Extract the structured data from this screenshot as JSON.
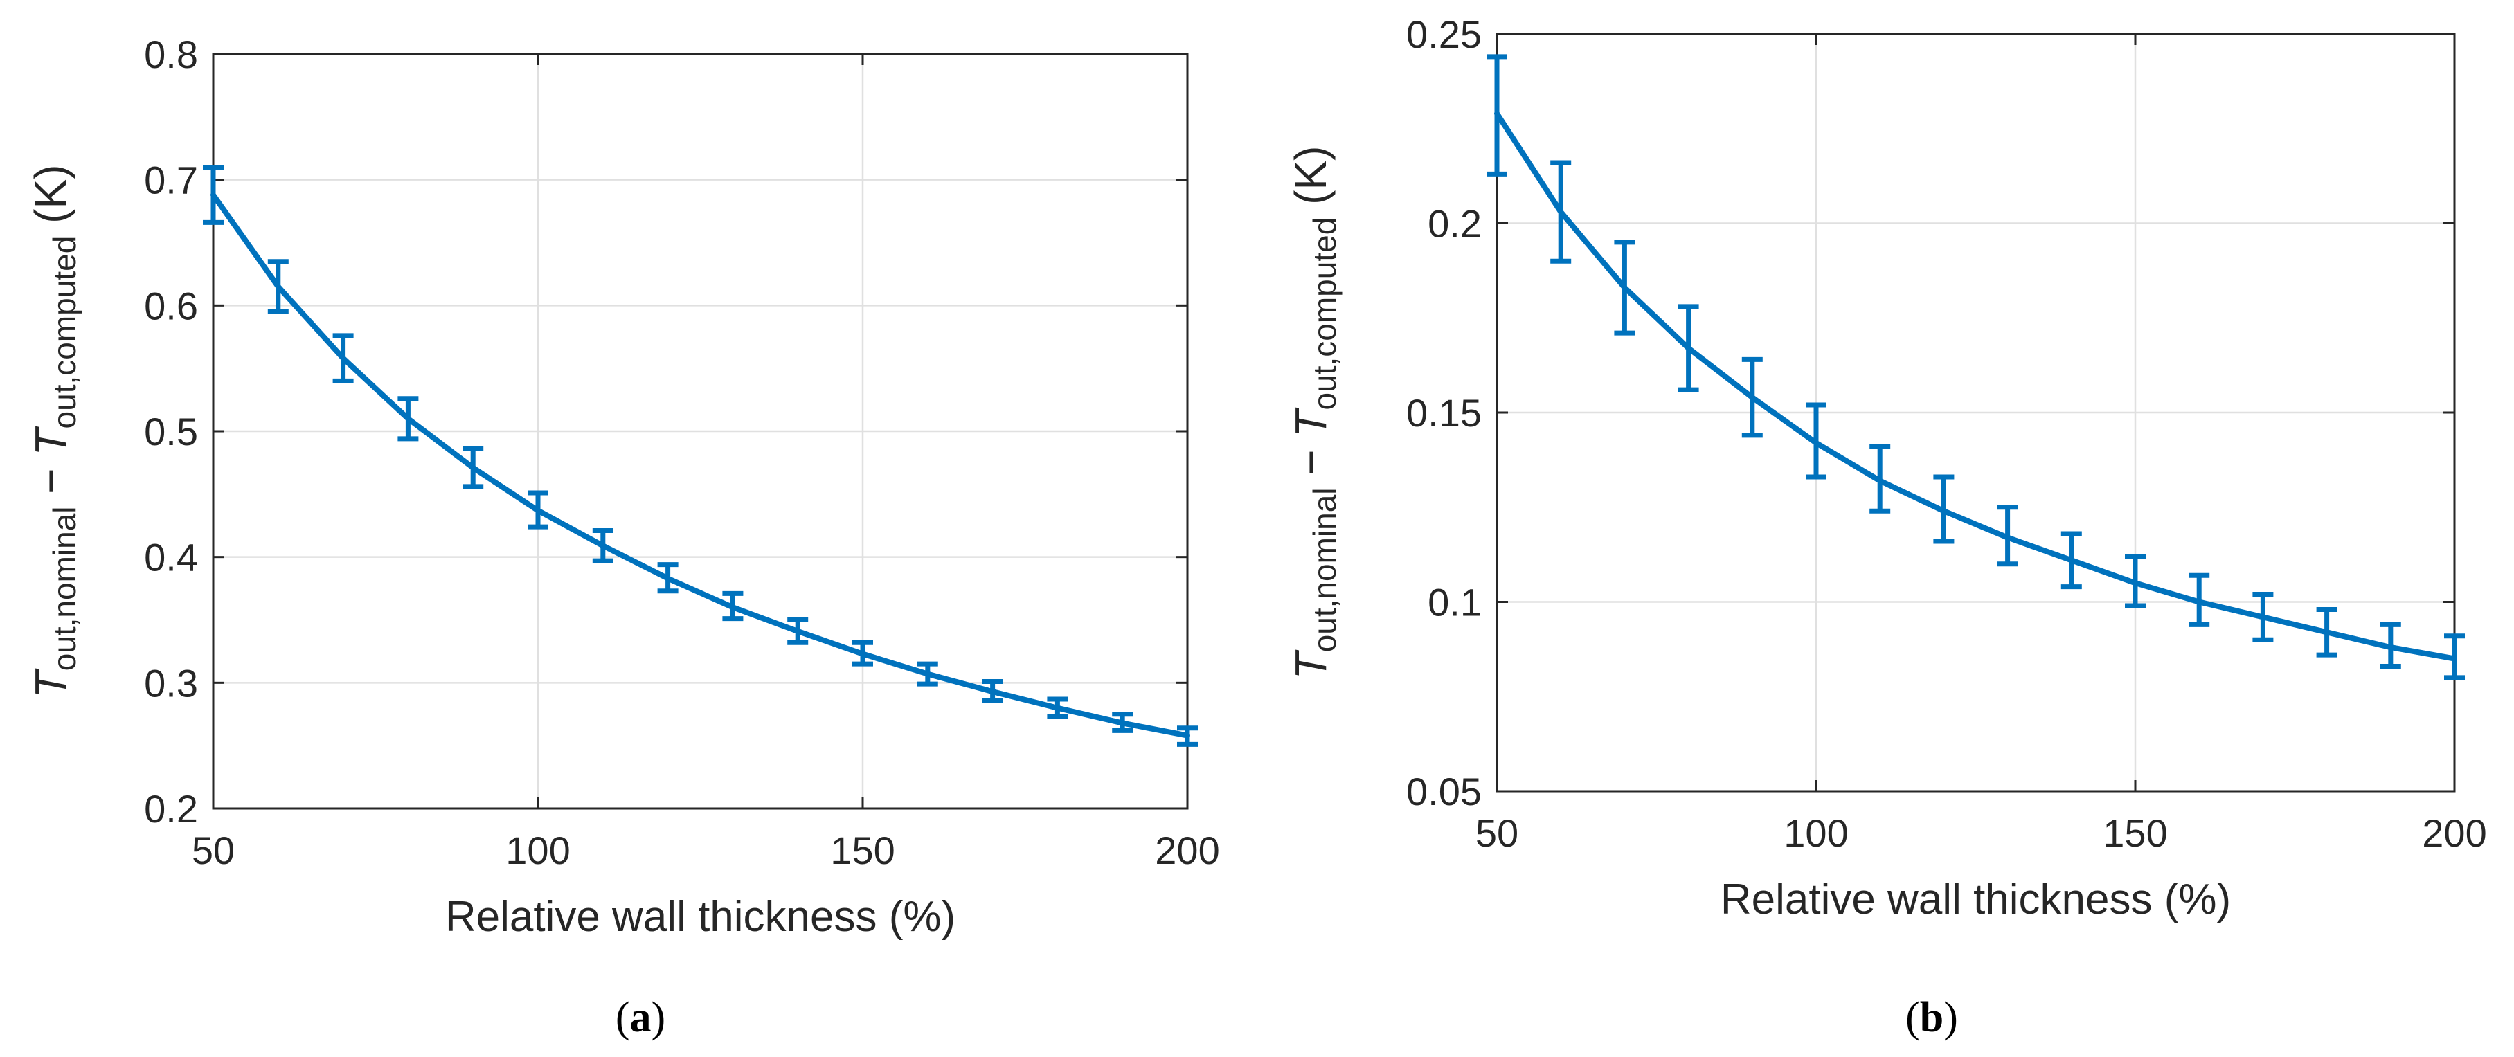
{
  "colors": {
    "series": "#0072BD",
    "axis": "#262626",
    "grid": "#e0e0e0"
  },
  "chart_data": [
    {
      "type": "line",
      "panel_label": "a",
      "xlabel": "Relative wall thickness (%)",
      "ylabel": {
        "T1": "T",
        "sub1": "out,nominal",
        "minus": " − ",
        "T2": "T",
        "sub2": "out,computed",
        "unit": " (K)"
      },
      "xlim": [
        50,
        200
      ],
      "ylim": [
        0.2,
        0.8
      ],
      "x_ticks": [
        50,
        100,
        150,
        200
      ],
      "x_tick_labels": [
        "50",
        "100",
        "150",
        "200"
      ],
      "y_ticks": [
        0.2,
        0.3,
        0.4,
        0.5,
        0.6,
        0.7,
        0.8
      ],
      "y_tick_labels": [
        "0.2",
        "0.3",
        "0.4",
        "0.5",
        "0.6",
        "0.7",
        "0.8"
      ],
      "grid": true,
      "x": [
        50,
        60,
        70,
        80,
        90,
        100,
        110,
        120,
        130,
        140,
        150,
        160,
        170,
        180,
        190,
        200
      ],
      "values": [
        0.688,
        0.615,
        0.558,
        0.51,
        0.471,
        0.437,
        0.409,
        0.383,
        0.36,
        0.341,
        0.323,
        0.307,
        0.293,
        0.28,
        0.268,
        0.258
      ],
      "err_low": [
        0.666,
        0.595,
        0.54,
        0.494,
        0.456,
        0.424,
        0.397,
        0.373,
        0.351,
        0.332,
        0.315,
        0.299,
        0.286,
        0.273,
        0.262,
        0.251
      ],
      "err_high": [
        0.71,
        0.635,
        0.576,
        0.526,
        0.486,
        0.451,
        0.421,
        0.394,
        0.371,
        0.35,
        0.332,
        0.315,
        0.301,
        0.287,
        0.275,
        0.264
      ]
    },
    {
      "type": "line",
      "panel_label": "b",
      "xlabel": "Relative wall thickness (%)",
      "ylabel": {
        "T1": "T",
        "sub1": "out,nominal",
        "minus": " − ",
        "T2": "T",
        "sub2": "out,computed",
        "unit": " (K)"
      },
      "xlim": [
        50,
        200
      ],
      "ylim": [
        0.05,
        0.25
      ],
      "x_ticks": [
        50,
        100,
        150,
        200
      ],
      "x_tick_labels": [
        "50",
        "100",
        "150",
        "200"
      ],
      "y_ticks": [
        0.05,
        0.1,
        0.15,
        0.2,
        0.25
      ],
      "y_tick_labels": [
        "0.05",
        "0.1",
        "0.15",
        "0.2",
        "0.25"
      ],
      "grid": true,
      "x": [
        50,
        60,
        70,
        80,
        90,
        100,
        110,
        120,
        130,
        140,
        150,
        160,
        170,
        180,
        190,
        200
      ],
      "values": [
        0.229,
        0.203,
        0.183,
        0.167,
        0.154,
        0.142,
        0.132,
        0.124,
        0.117,
        0.111,
        0.105,
        0.1,
        0.096,
        0.092,
        0.088,
        0.085
      ],
      "err_low": [
        0.213,
        0.19,
        0.171,
        0.156,
        0.144,
        0.133,
        0.124,
        0.116,
        0.11,
        0.104,
        0.099,
        0.094,
        0.09,
        0.086,
        0.083,
        0.08
      ],
      "err_high": [
        0.244,
        0.216,
        0.195,
        0.178,
        0.164,
        0.152,
        0.141,
        0.133,
        0.125,
        0.118,
        0.112,
        0.107,
        0.102,
        0.098,
        0.094,
        0.091
      ]
    }
  ]
}
